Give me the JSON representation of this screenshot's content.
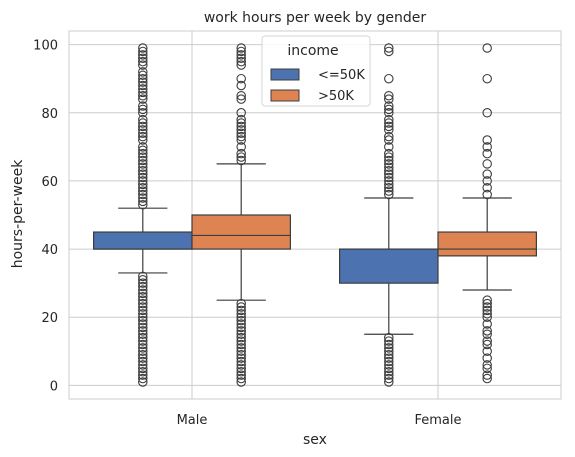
{
  "chart_data": {
    "type": "boxplot",
    "title": "work hours per week by gender",
    "xlabel": "sex",
    "ylabel": "hours-per-week",
    "categories": [
      "Male",
      "Female"
    ],
    "ylim": [
      -4,
      104
    ],
    "yticks": [
      0,
      20,
      40,
      60,
      80,
      100
    ],
    "grid": true,
    "legend": {
      "title": "income",
      "position": "top-center"
    },
    "series": [
      {
        "name": "<=50K",
        "color": "#4c72b0",
        "boxes": [
          {
            "category": "Male",
            "q1": 40,
            "median": 40,
            "q3": 45,
            "whisker_low": 33,
            "whisker_high": 52,
            "outliers": [
              1,
              2,
              3,
              4,
              5,
              6,
              7,
              8,
              9,
              10,
              11,
              12,
              13,
              14,
              15,
              16,
              17,
              18,
              19,
              20,
              21,
              22,
              23,
              24,
              25,
              26,
              27,
              28,
              29,
              30,
              31,
              32,
              53,
              54,
              55,
              56,
              57,
              58,
              59,
              60,
              61,
              62,
              63,
              64,
              65,
              66,
              67,
              68,
              69,
              70,
              72,
              73,
              74,
              75,
              76,
              77,
              78,
              80,
              81,
              82,
              84,
              85,
              86,
              87,
              88,
              89,
              90,
              91,
              92,
              94,
              95,
              96,
              97,
              98,
              99
            ]
          },
          {
            "category": "Female",
            "q1": 30,
            "median": 40,
            "q3": 40,
            "whisker_low": 15,
            "whisker_high": 55,
            "outliers": [
              1,
              2,
              3,
              4,
              5,
              6,
              7,
              8,
              9,
              10,
              11,
              12,
              13,
              14,
              56,
              57,
              58,
              59,
              60,
              61,
              62,
              63,
              64,
              65,
              66,
              67,
              68,
              70,
              72,
              73,
              75,
              76,
              77,
              78,
              80,
              81,
              82,
              84,
              85,
              90,
              98,
              99
            ]
          }
        ]
      },
      {
        "name": ">50K",
        "color": "#dd8452",
        "boxes": [
          {
            "category": "Male",
            "q1": 40,
            "median": 44,
            "q3": 50,
            "whisker_low": 25,
            "whisker_high": 65,
            "outliers": [
              1,
              2,
              3,
              4,
              5,
              6,
              7,
              8,
              9,
              10,
              11,
              12,
              13,
              14,
              15,
              16,
              17,
              18,
              19,
              20,
              21,
              22,
              23,
              24,
              66,
              67,
              68,
              70,
              72,
              73,
              74,
              75,
              76,
              77,
              78,
              80,
              84,
              85,
              88,
              90,
              94,
              95,
              96,
              97,
              98,
              99
            ]
          },
          {
            "category": "Female",
            "q1": 38,
            "median": 40,
            "q3": 45,
            "whisker_low": 28,
            "whisker_high": 55,
            "outliers": [
              2,
              3,
              5,
              6,
              8,
              10,
              12,
              13,
              15,
              16,
              18,
              20,
              21,
              22,
              23,
              24,
              25,
              56,
              58,
              60,
              62,
              65,
              68,
              70,
              72,
              80,
              90,
              99
            ]
          }
        ]
      }
    ]
  }
}
